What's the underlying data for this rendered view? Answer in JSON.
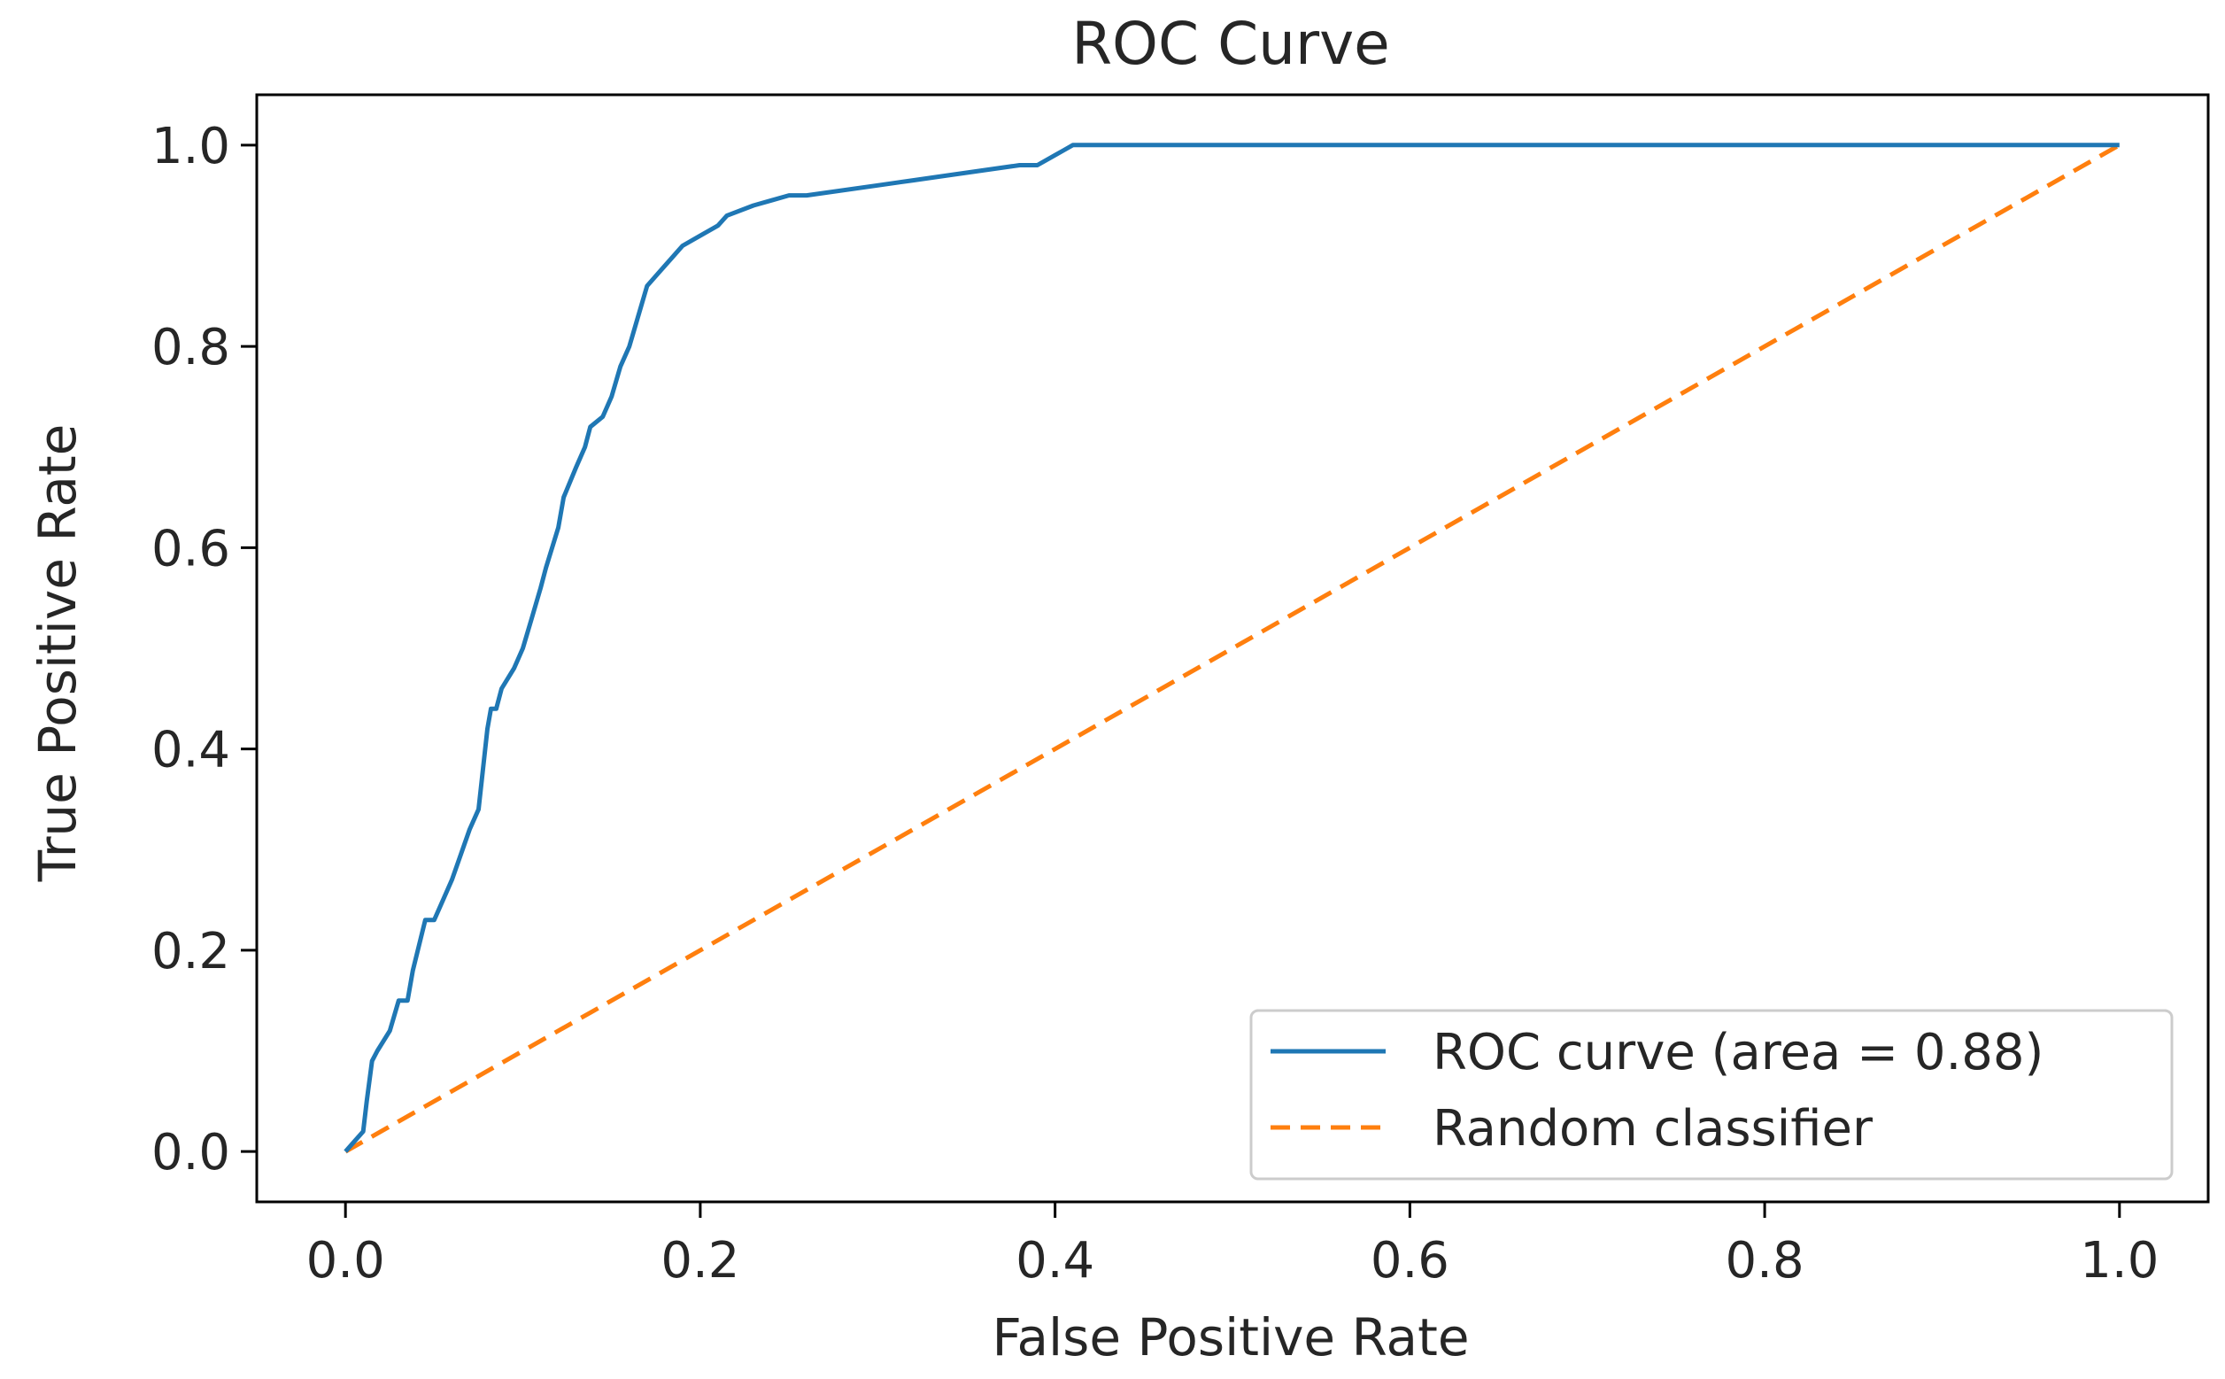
{
  "chart_data": {
    "type": "line",
    "title": "ROC Curve",
    "xlabel": "False Positive Rate",
    "ylabel": "True Positive Rate",
    "xlim": [
      -0.05,
      1.05
    ],
    "ylim": [
      -0.05,
      1.05
    ],
    "xticks": [
      0.0,
      0.2,
      0.4,
      0.6,
      0.8,
      1.0
    ],
    "xtick_labels": [
      "0.0",
      "0.2",
      "0.4",
      "0.6",
      "0.8",
      "1.0"
    ],
    "yticks": [
      0.0,
      0.2,
      0.4,
      0.6,
      0.8,
      1.0
    ],
    "ytick_labels": [
      "0.0",
      "0.2",
      "0.4",
      "0.6",
      "0.8",
      "1.0"
    ],
    "grid": false,
    "legend_position": "lower-right",
    "series": [
      {
        "name": "ROC curve (area = 0.88)",
        "color": "#1f77b4",
        "style": "solid",
        "x": [
          0.0,
          0.005,
          0.01,
          0.012,
          0.015,
          0.018,
          0.025,
          0.03,
          0.035,
          0.038,
          0.045,
          0.05,
          0.055,
          0.06,
          0.07,
          0.075,
          0.08,
          0.082,
          0.085,
          0.088,
          0.095,
          0.1,
          0.105,
          0.11,
          0.113,
          0.12,
          0.123,
          0.13,
          0.135,
          0.138,
          0.145,
          0.15,
          0.155,
          0.16,
          0.165,
          0.17,
          0.175,
          0.18,
          0.185,
          0.19,
          0.2,
          0.21,
          0.215,
          0.23,
          0.24,
          0.25,
          0.26,
          0.3,
          0.32,
          0.34,
          0.38,
          0.39,
          0.4,
          0.405,
          0.41,
          0.6,
          0.8,
          1.0
        ],
        "y": [
          0.0,
          0.01,
          0.02,
          0.05,
          0.09,
          0.1,
          0.12,
          0.15,
          0.15,
          0.18,
          0.23,
          0.23,
          0.25,
          0.27,
          0.32,
          0.34,
          0.42,
          0.44,
          0.44,
          0.46,
          0.48,
          0.5,
          0.53,
          0.56,
          0.58,
          0.62,
          0.65,
          0.68,
          0.7,
          0.72,
          0.73,
          0.75,
          0.78,
          0.8,
          0.83,
          0.86,
          0.87,
          0.88,
          0.89,
          0.9,
          0.91,
          0.92,
          0.93,
          0.94,
          0.945,
          0.95,
          0.95,
          0.96,
          0.965,
          0.97,
          0.98,
          0.98,
          0.99,
          0.995,
          1.0,
          1.0,
          1.0,
          1.0
        ]
      },
      {
        "name": "Random classifier",
        "color": "#ff7f0e",
        "style": "dashed",
        "x": [
          0.0,
          1.0
        ],
        "y": [
          0.0,
          1.0
        ]
      }
    ]
  }
}
